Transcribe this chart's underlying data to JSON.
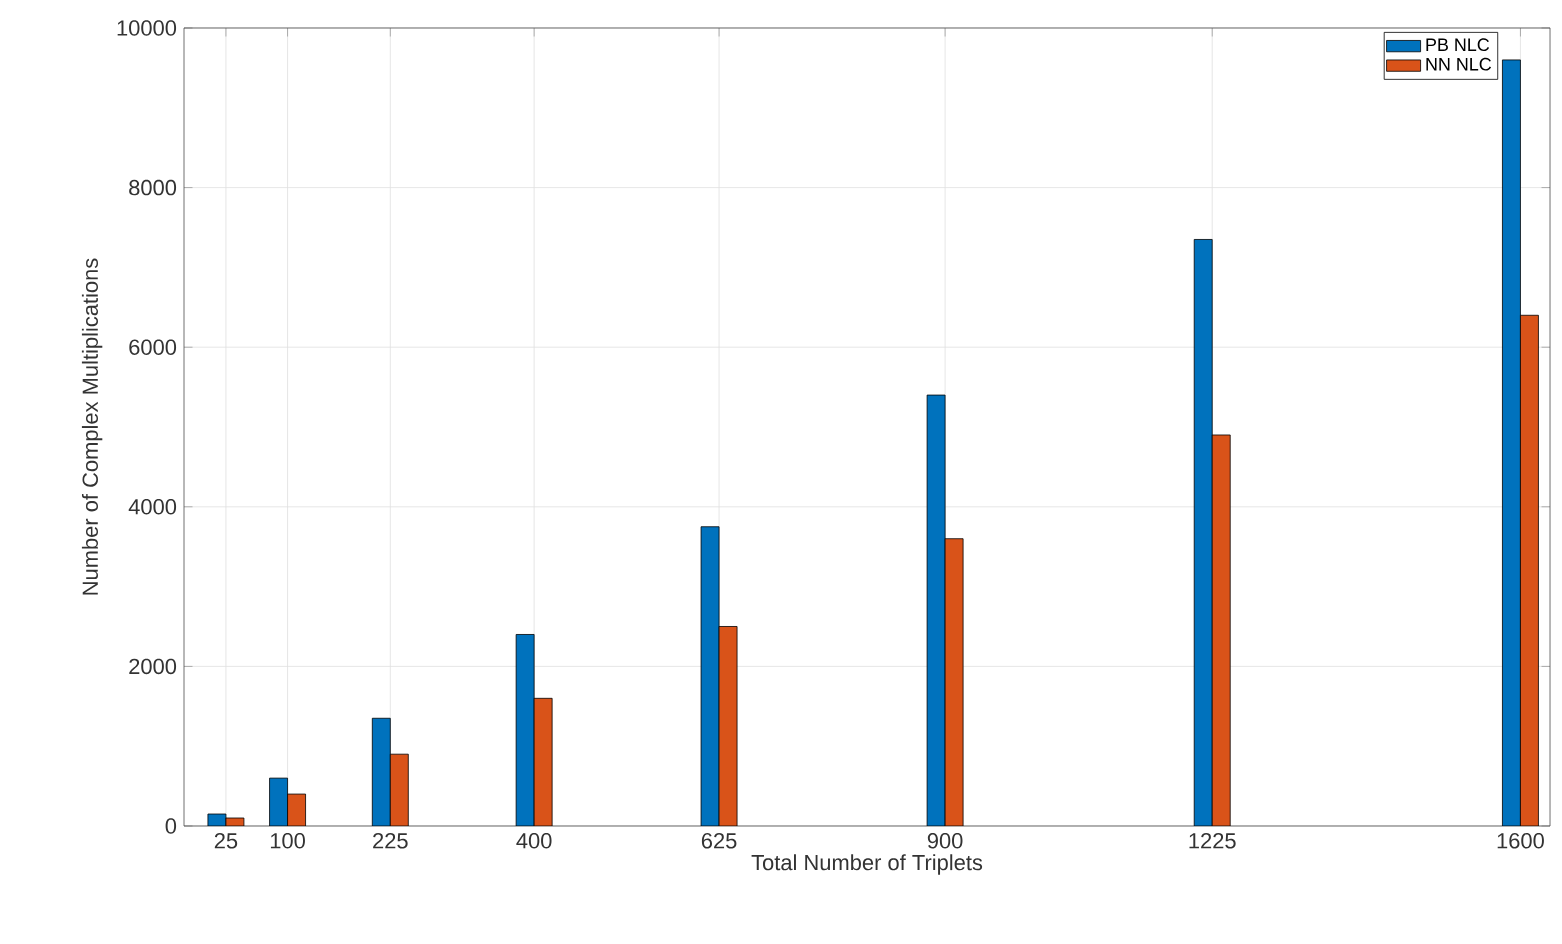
{
  "chart_data": {
    "type": "bar",
    "xlabel": "Total Number of Triplets",
    "ylabel": "Number of Complex Multiplications",
    "x": [
      25,
      100,
      225,
      400,
      625,
      900,
      1225,
      1600
    ],
    "series": [
      {
        "name": "PB NLC",
        "color": "#0072bd",
        "values": [
          150,
          600,
          1350,
          2400,
          3750,
          5400,
          7350,
          9600
        ]
      },
      {
        "name": "NN NLC",
        "color": "#d95319",
        "values": [
          100,
          400,
          900,
          1600,
          2500,
          3600,
          4900,
          6400
        ]
      }
    ],
    "xlim": [
      -26,
      1636
    ],
    "ylim": [
      0,
      10000
    ],
    "xticks": [
      25,
      100,
      225,
      400,
      625,
      900,
      1225,
      1600
    ],
    "yticks": [
      0,
      2000,
      4000,
      6000,
      8000,
      10000
    ],
    "grid": true,
    "legend": "top right"
  }
}
